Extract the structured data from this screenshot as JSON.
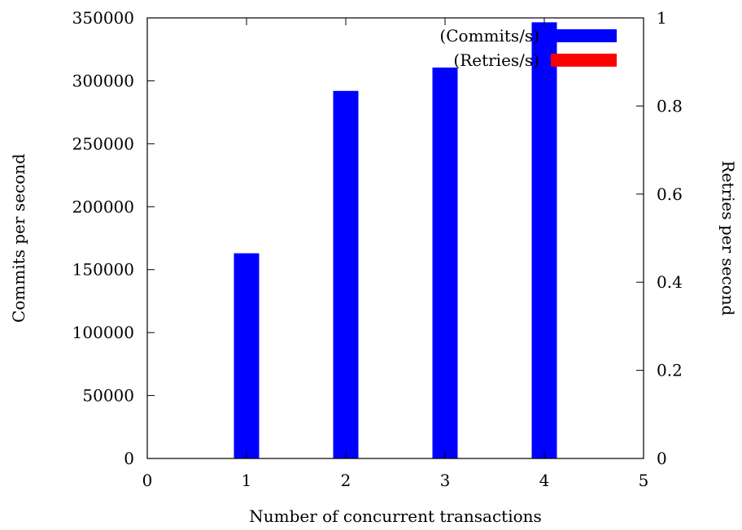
{
  "chart_data": {
    "type": "bar",
    "title": "",
    "xlabel": "Number of concurrent transactions",
    "ylabel": "Commits per second",
    "y2label": "Retries per second",
    "xlim": [
      0,
      5
    ],
    "ylim": [
      0,
      350000
    ],
    "y2lim": [
      0,
      1
    ],
    "xticks": [
      "0",
      "1",
      "2",
      "3",
      "4",
      "5"
    ],
    "yticks": [
      "0",
      "50000",
      "100000",
      "150000",
      "200000",
      "250000",
      "300000",
      "350000"
    ],
    "y2ticks": [
      "0",
      "0.2",
      "0.4",
      "0.6",
      "0.8",
      "1"
    ],
    "grid": false,
    "legend_position": "top-right",
    "series": [
      {
        "name": "(Commits/s)",
        "axis": "y",
        "color": "#0000ff",
        "x": [
          1,
          2,
          3,
          4
        ],
        "values": [
          163000,
          292000,
          310500,
          346500
        ]
      },
      {
        "name": "(Retries/s)",
        "axis": "y2",
        "color": "#ff0000",
        "x": [
          1,
          2,
          3,
          4
        ],
        "values": [
          0,
          0,
          0,
          0
        ]
      }
    ]
  }
}
